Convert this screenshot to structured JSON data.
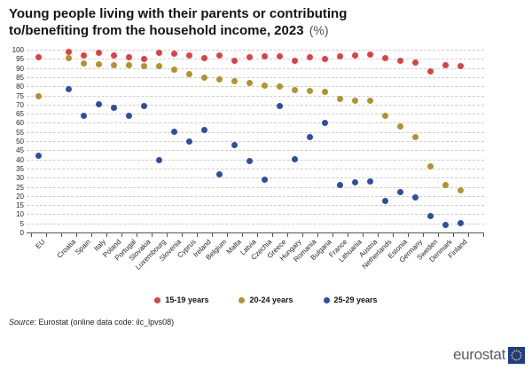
{
  "title": {
    "line1": "Young people living with their parents or contributing",
    "line2": "to/benefiting from the household income, 2023",
    "unit": "(%)"
  },
  "chart_data": {
    "type": "scatter",
    "categories": [
      "EU",
      "Croatia",
      "Spain",
      "Italy",
      "Poland",
      "Portugal",
      "Slovakia",
      "Luxembourg",
      "Slovenia",
      "Cyprus",
      "Ireland",
      "Belgium",
      "Malta",
      "Latvia",
      "Czechia",
      "Greece",
      "Hungary",
      "Romania",
      "Bulgaria",
      "France",
      "Lithuania",
      "Austria",
      "Netherlands",
      "Estonia",
      "Germany",
      "Sweden",
      "Denmark",
      "Finland"
    ],
    "series": [
      {
        "name": "15-19 years",
        "color": "#dd4243",
        "values": [
          96,
          99,
          97,
          98.5,
          97,
          96,
          95,
          98.5,
          98,
          97,
          95.5,
          97,
          94,
          96,
          96.5,
          96.5,
          94,
          96,
          95,
          96.5,
          97,
          97.5,
          95.5,
          94,
          93,
          88,
          91.5,
          91
        ]
      },
      {
        "name": "20-24 years",
        "color": "#b5922a",
        "values": [
          74.5,
          95.5,
          92.5,
          92,
          91.5,
          91.5,
          91,
          91,
          89,
          86.5,
          84.5,
          83.5,
          83,
          82,
          80.5,
          80,
          78,
          77.5,
          77,
          73,
          72,
          72,
          64,
          58,
          52,
          36,
          26,
          23
        ]
      },
      {
        "name": "25-29 years",
        "color": "#2c4fa3",
        "values": [
          42,
          78.5,
          64,
          70,
          68,
          64,
          69,
          39.5,
          55,
          50,
          56,
          32,
          48,
          39,
          29,
          69,
          40,
          52,
          60,
          26,
          27.5,
          28,
          17,
          22,
          19,
          9,
          4,
          5
        ]
      }
    ],
    "ylim": [
      0,
      100
    ],
    "ytick_step": 5,
    "grid": "horizontal-dashed",
    "legend_position": "bottom-center",
    "gap_after_first_category": true
  },
  "footer": {
    "source_word": "Source",
    "source_rest": ": Eurostat (online data code: ilc_lpvs08)"
  },
  "logo": {
    "text": "eurostat",
    "square_color": "#1b3d91",
    "star_color": "#f8c31e"
  }
}
